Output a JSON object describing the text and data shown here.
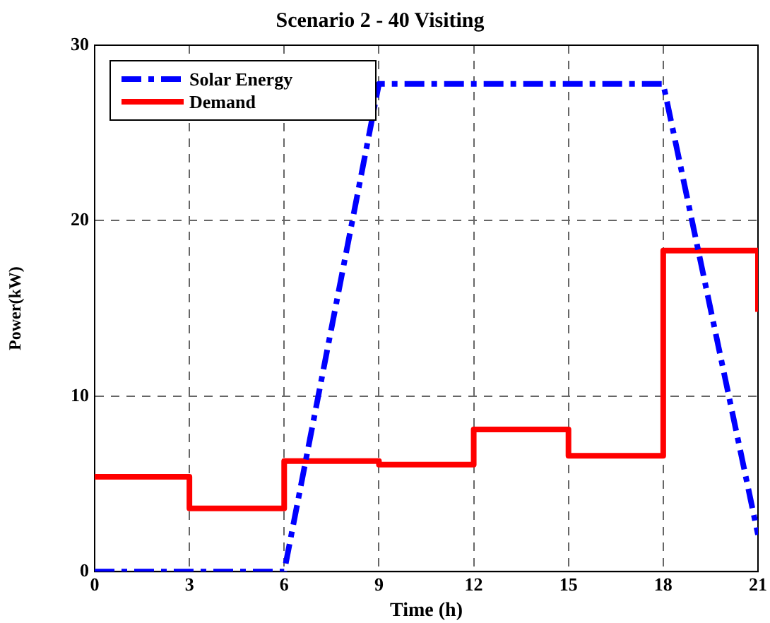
{
  "chart_data": {
    "type": "line",
    "title": "Scenario 2 - 40 Visiting",
    "xlabel": "Time (h)",
    "ylabel": "Power(kW)",
    "xlim": [
      0,
      21
    ],
    "xticks": [
      0,
      3,
      6,
      9,
      12,
      15,
      18,
      21
    ],
    "ylim": [
      0,
      30
    ],
    "yticks": [
      0,
      10,
      20,
      30
    ],
    "grid": true,
    "legend": "top left",
    "marker": "none",
    "series": [
      {
        "name": "Solar Energy",
        "color": "#0000ff",
        "line_style": "dashed",
        "x": [
          0,
          6,
          9,
          18,
          21
        ],
        "values": [
          0,
          0,
          27.8,
          27.8,
          2.1
        ]
      },
      {
        "name": "Demand",
        "type": "step",
        "color": "#ff0000",
        "line_style": "solid",
        "x": [
          0,
          3,
          6,
          9,
          12,
          15,
          18,
          21
        ],
        "values": [
          5.4,
          3.6,
          6.3,
          6.1,
          8.1,
          6.6,
          18.3,
          14.8
        ]
      }
    ]
  }
}
